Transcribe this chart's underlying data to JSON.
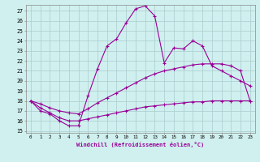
{
  "xlabel": "Windchill (Refroidissement éolien,°C)",
  "bg_color": "#cff0ee",
  "grid_color": "#aacccc",
  "line_color": "#990099",
  "x": [
    0,
    1,
    2,
    3,
    4,
    5,
    6,
    7,
    8,
    9,
    10,
    11,
    12,
    13,
    14,
    15,
    16,
    17,
    18,
    19,
    20,
    21,
    22,
    23
  ],
  "line1": [
    18.0,
    17.0,
    16.7,
    16.0,
    15.5,
    15.5,
    18.5,
    21.2,
    23.5,
    24.2,
    25.8,
    27.2,
    27.5,
    26.5,
    21.8,
    23.3,
    23.2,
    24.0,
    23.5,
    21.5,
    21.0,
    20.5,
    20.0,
    19.5
  ],
  "line2": [
    18.0,
    17.7,
    17.3,
    17.0,
    16.8,
    16.7,
    17.2,
    17.8,
    18.3,
    18.8,
    19.3,
    19.8,
    20.3,
    20.7,
    21.0,
    21.2,
    21.4,
    21.6,
    21.7,
    21.7,
    21.7,
    21.5,
    21.0,
    18.0
  ],
  "line3": [
    18.0,
    17.3,
    16.8,
    16.3,
    16.0,
    16.0,
    16.2,
    16.4,
    16.6,
    16.8,
    17.0,
    17.2,
    17.4,
    17.5,
    17.6,
    17.7,
    17.8,
    17.9,
    17.9,
    18.0,
    18.0,
    18.0,
    18.0,
    18.0
  ],
  "ylim_min": 14.8,
  "ylim_max": 27.6,
  "yticks": [
    15,
    16,
    17,
    18,
    19,
    20,
    21,
    22,
    23,
    24,
    25,
    26,
    27
  ],
  "xticks": [
    0,
    1,
    2,
    3,
    4,
    5,
    6,
    7,
    8,
    9,
    10,
    11,
    12,
    13,
    14,
    15,
    16,
    17,
    18,
    19,
    20,
    21,
    22,
    23
  ]
}
